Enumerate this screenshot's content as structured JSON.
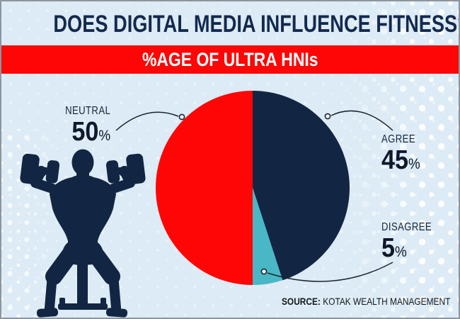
{
  "header": {
    "title": "DOES DIGITAL MEDIA INFLUENCE FITNESS?",
    "banner": "%AGE OF ULTRA HNIs"
  },
  "chart_data": {
    "type": "pie",
    "title": "%AGE OF ULTRA HNIs",
    "question": "DOES DIGITAL MEDIA INFLUENCE FITNESS?",
    "unit": "%",
    "start_angle_deg": 0,
    "direction": "clockwise",
    "slices": [
      {
        "label": "AGREE",
        "value": 45,
        "color": "#122643"
      },
      {
        "label": "DISAGREE",
        "value": 5,
        "color": "#49b7c5"
      },
      {
        "label": "NEUTRAL",
        "value": 50,
        "color": "#fe0606"
      }
    ],
    "legend_position": "callout-labels",
    "source": "KOTAK WEALTH MANAGEMENT"
  },
  "callouts": {
    "neutral": {
      "label": "NEUTRAL",
      "value": "50"
    },
    "agree": {
      "label": "AGREE",
      "value": "45"
    },
    "disagree": {
      "label": "DISAGREE",
      "value": "5"
    }
  },
  "percent_sign": "%",
  "source": {
    "label": "SOURCE:",
    "text": "KOTAK WEALTH MANAGEMENT"
  },
  "colors": {
    "background": "#dcebf5",
    "navy": "#122643",
    "red": "#fe0606",
    "teal": "#49b7c5",
    "banner_background": "#fe0606",
    "banner_text": "#ffffff",
    "title_text": "#14294e",
    "callout_line": "#1c2430"
  },
  "icons": {
    "weightlifter": "weightlifter-silhouette"
  }
}
